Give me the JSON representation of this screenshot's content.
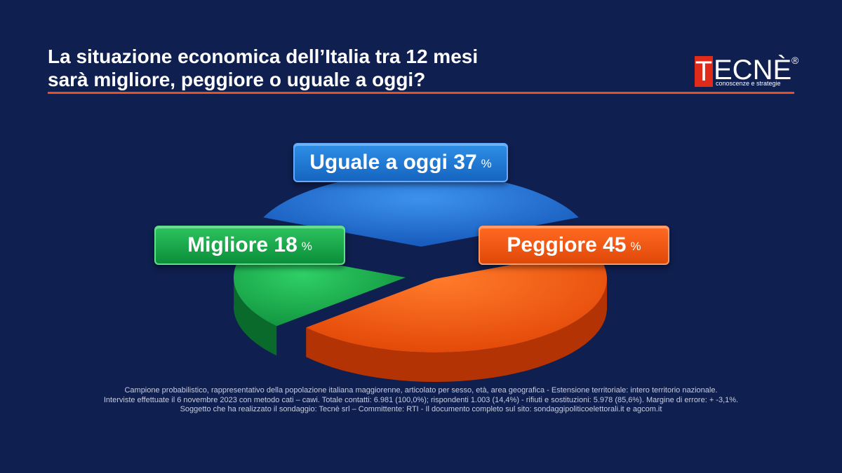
{
  "header": {
    "title_line1": "La situazione economica dell’Italia tra 12 mesi",
    "title_line2": "sarà migliore, peggiore o uguale a oggi?"
  },
  "logo": {
    "initial": "T",
    "rest": "ECNÈ",
    "registered": "®",
    "tagline": "conoscenze e strategie"
  },
  "chart_data": {
    "type": "pie",
    "title": "La situazione economica dell’Italia tra 12 mesi sarà migliore, peggiore o uguale a oggi?",
    "slices": [
      {
        "name": "Uguale a oggi",
        "value": 37,
        "color": "#1e6fd6"
      },
      {
        "name": "Peggiore",
        "value": 45,
        "color": "#ff5a10"
      },
      {
        "name": "Migliore",
        "value": 18,
        "color": "#19a94a"
      }
    ],
    "unit": "%",
    "style": "3d-exploded"
  },
  "labels": {
    "uguale": {
      "text": "Uguale a oggi 37",
      "pct": "%"
    },
    "migliore": {
      "text": "Migliore 18",
      "pct": "%"
    },
    "peggiore": {
      "text": "Peggiore 45",
      "pct": "%"
    }
  },
  "footnote": {
    "line1": "Campione probabilistico, rappresentativo della popolazione italiana maggiorenne, articolato per sesso, età, area geografica - Estensione territoriale: intero territorio nazionale.",
    "line2": "Interviste effettuate il 6 novembre 2023 con metodo cati – cawi. Totale contatti: 6.981 (100,0%); rispondenti 1.003 (14,4%) - rifiuti e sostituzioni: 5.978 (85,6%). Margine di errore: + -3,1%.",
    "line3": "Soggetto che ha realizzato il sondaggio: Tecnè srl – Committente: RTI - Il documento completo sul sito: sondaggipoliticoelettorali.it e agcom.it"
  }
}
